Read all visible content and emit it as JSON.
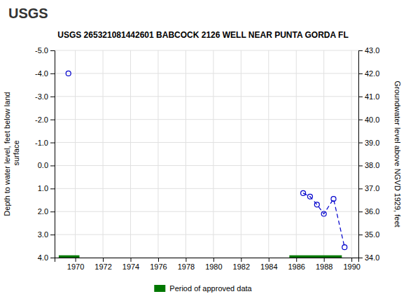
{
  "chart_data": {
    "type": "line",
    "title": "USGS 265321081442601 BABCOCK 2126 WELL NEAR PUNTA GORDA FL",
    "annotations": [
      {
        "text": "USGS"
      }
    ],
    "ylabel": "Depth to water level, feet below land\n surface",
    "y2label": "Groundwater level above NGVD 1929, feet",
    "xlim": [
      1968.5,
      1990.5
    ],
    "xticks": [
      1970,
      1972,
      1974,
      1976,
      1978,
      1980,
      1982,
      1984,
      1986,
      1988,
      1990
    ],
    "ylim": [
      4.0,
      -5.0
    ],
    "yticks": [
      {
        "value": -5.0,
        "label": "-5.0"
      },
      {
        "value": -4.0,
        "label": "-4.0"
      },
      {
        "value": -3.0,
        "label": "-3.0"
      },
      {
        "value": -2.0,
        "label": "-2.0"
      },
      {
        "value": -1.0,
        "label": "-1.0"
      },
      {
        "value": 0.0,
        "label": "0.0"
      },
      {
        "value": 1.0,
        "label": "1.0"
      },
      {
        "value": 2.0,
        "label": "2.0"
      },
      {
        "value": 3.0,
        "label": "3.0"
      },
      {
        "value": 4.0,
        "label": "4.0"
      }
    ],
    "y2lim": [
      34.0,
      43.0
    ],
    "y2ticks": [
      {
        "value": 34.0,
        "label": "34.0"
      },
      {
        "value": 35.0,
        "label": "35.0"
      },
      {
        "value": 36.0,
        "label": "36.0"
      },
      {
        "value": 37.0,
        "label": "37.0"
      },
      {
        "value": 38.0,
        "label": "38.0"
      },
      {
        "value": 39.0,
        "label": "39.0"
      },
      {
        "value": 40.0,
        "label": "40.0"
      },
      {
        "value": 41.0,
        "label": "41.0"
      },
      {
        "value": 42.0,
        "label": "42.0"
      },
      {
        "value": 43.0,
        "label": "43.0"
      }
    ],
    "grid": true,
    "legend": "bottom",
    "series": [
      {
        "type": "scatter",
        "color": "#0000cc",
        "marker": "circle",
        "x": [
          1969.5
        ],
        "values": [
          -4.0
        ]
      },
      {
        "type": "line",
        "color": "#0000cc",
        "marker": "circle",
        "line_style": "dashed",
        "x": [
          1986.5,
          1987.0,
          1987.5,
          1988.0,
          1988.7,
          1989.5
        ],
        "values": [
          1.2,
          1.35,
          1.7,
          2.1,
          1.45,
          3.55
        ]
      },
      {
        "type": "span",
        "name": "Period of approved data",
        "color": "#007700",
        "x_start": [
          1968.8,
          1985.5
        ],
        "x_end": [
          1970.3,
          1989.3
        ],
        "values": [
          4.0,
          4.0
        ],
        "bar_height": 0.1
      }
    ]
  }
}
